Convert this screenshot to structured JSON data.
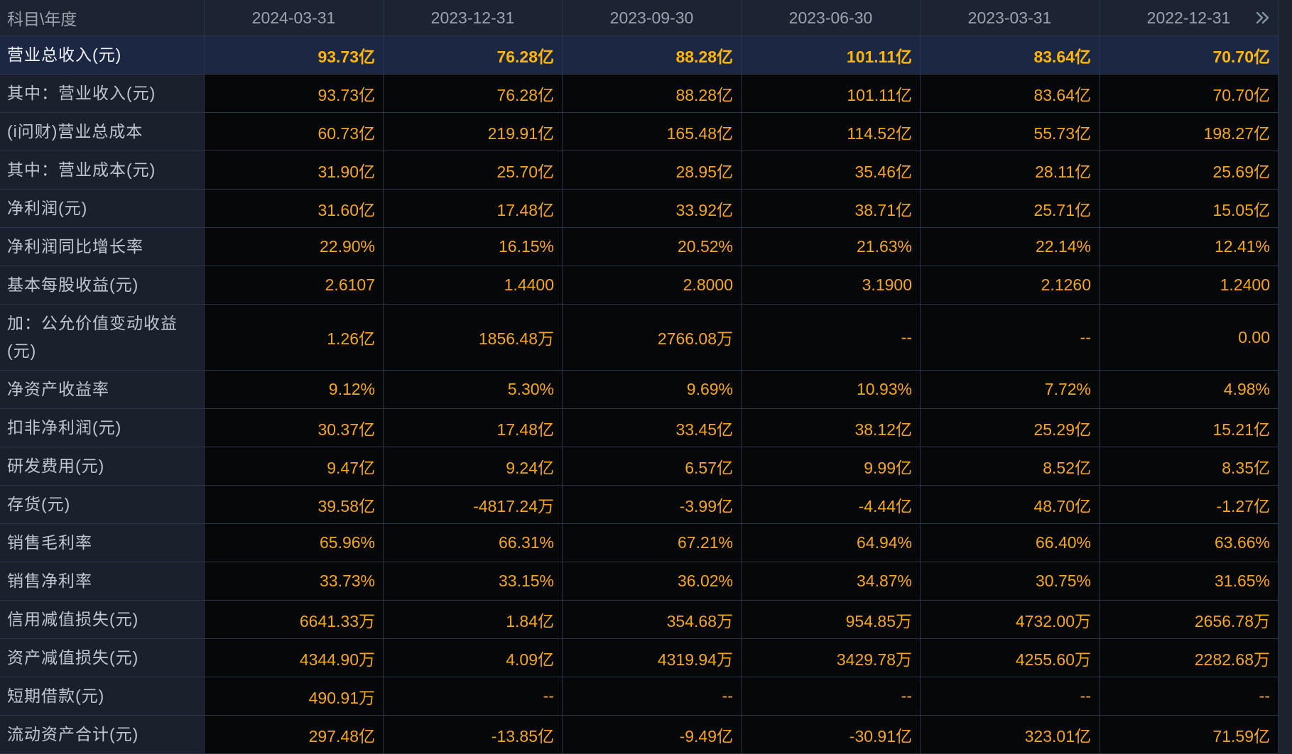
{
  "header": {
    "label": "科目\\年度",
    "columns": [
      "2024-03-31",
      "2023-12-31",
      "2023-09-30",
      "2023-06-30",
      "2023-03-31",
      "2022-12-31"
    ],
    "next_icon": "double-chevron-right-icon"
  },
  "rows": [
    {
      "label": "营业总收入(元)",
      "selected": true,
      "values": [
        "93.73亿",
        "76.28亿",
        "88.28亿",
        "101.11亿",
        "83.64亿",
        "70.70亿"
      ]
    },
    {
      "label": "其中：营业收入(元)",
      "values": [
        "93.73亿",
        "76.28亿",
        "88.28亿",
        "101.11亿",
        "83.64亿",
        "70.70亿"
      ]
    },
    {
      "label": "(i问财)营业总成本",
      "values": [
        "60.73亿",
        "219.91亿",
        "165.48亿",
        "114.52亿",
        "55.73亿",
        "198.27亿"
      ]
    },
    {
      "label": "其中：营业成本(元)",
      "values": [
        "31.90亿",
        "25.70亿",
        "28.95亿",
        "35.46亿",
        "28.11亿",
        "25.69亿"
      ]
    },
    {
      "label": "净利润(元)",
      "values": [
        "31.60亿",
        "17.48亿",
        "33.92亿",
        "38.71亿",
        "25.71亿",
        "15.05亿"
      ]
    },
    {
      "label": "净利润同比增长率",
      "values": [
        "22.90%",
        "16.15%",
        "20.52%",
        "21.63%",
        "22.14%",
        "12.41%"
      ]
    },
    {
      "label": "基本每股收益(元)",
      "values": [
        "2.6107",
        "1.4400",
        "2.8000",
        "3.1900",
        "2.1260",
        "1.2400"
      ]
    },
    {
      "label": "加：公允价值变动收益(元)",
      "values": [
        "1.26亿",
        "1856.48万",
        "2766.08万",
        "--",
        "--",
        "0.00"
      ]
    },
    {
      "label": "净资产收益率",
      "values": [
        "9.12%",
        "5.30%",
        "9.69%",
        "10.93%",
        "7.72%",
        "4.98%"
      ]
    },
    {
      "label": "扣非净利润(元)",
      "values": [
        "30.37亿",
        "17.48亿",
        "33.45亿",
        "38.12亿",
        "25.29亿",
        "15.21亿"
      ]
    },
    {
      "label": "研发费用(元)",
      "values": [
        "9.47亿",
        "9.24亿",
        "6.57亿",
        "9.99亿",
        "8.52亿",
        "8.35亿"
      ]
    },
    {
      "label": "存货(元)",
      "values": [
        "39.58亿",
        "-4817.24万",
        "-3.99亿",
        "-4.44亿",
        "48.70亿",
        "-1.27亿"
      ]
    },
    {
      "label": "销售毛利率",
      "values": [
        "65.96%",
        "66.31%",
        "67.21%",
        "64.94%",
        "66.40%",
        "63.66%"
      ]
    },
    {
      "label": "销售净利率",
      "values": [
        "33.73%",
        "33.15%",
        "36.02%",
        "34.87%",
        "30.75%",
        "31.65%"
      ]
    },
    {
      "label": "信用减值损失(元)",
      "values": [
        "6641.33万",
        "1.84亿",
        "354.68万",
        "954.85万",
        "4732.00万",
        "2656.78万"
      ]
    },
    {
      "label": "资产减值损失(元)",
      "values": [
        "4344.90万",
        "4.09亿",
        "4319.94万",
        "3429.78万",
        "4255.60万",
        "2282.68万"
      ]
    },
    {
      "label": "短期借款(元)",
      "values": [
        "490.91万",
        "--",
        "--",
        "--",
        "--",
        "--"
      ]
    },
    {
      "label": "流动资产合计(元)",
      "values": [
        "297.48亿",
        "-13.85亿",
        "-9.49亿",
        "-30.91亿",
        "323.01亿",
        "71.59亿"
      ]
    }
  ],
  "colors": {
    "background": "#050709",
    "header_bg": "#1c2433",
    "header_text": "#9ca4b0",
    "label_bg": "#1a212d",
    "label_text": "#bfc6d1",
    "value_text": "#f5a623",
    "selected_row_bg": "#1c2843",
    "selected_label_text": "#eef1f6",
    "selected_value_text": "#ffb50a",
    "grid_line": "#2b3547",
    "strip_bg": "#1c222d"
  }
}
